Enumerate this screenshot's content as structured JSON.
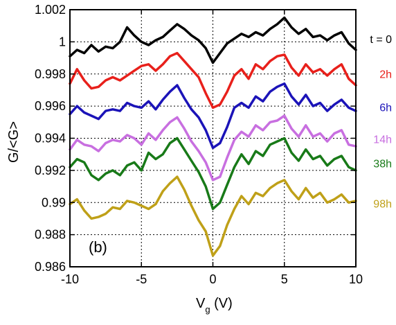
{
  "chart_data": {
    "type": "line",
    "panel_label": "(b)",
    "xlabel": "V",
    "xlabel_sub": "g",
    "xlabel_unit": " (V)",
    "ylabel": "G/<G>",
    "xlim": [
      -10,
      10
    ],
    "ylim": [
      0.986,
      1.002
    ],
    "xticks": [
      -10,
      -5,
      0,
      5,
      10
    ],
    "yticks": [
      0.986,
      0.988,
      0.99,
      0.992,
      0.994,
      0.996,
      0.998,
      1,
      1.002
    ],
    "ytick_labels": [
      "0.986",
      "0.988",
      "0.99",
      "0.992",
      "0.994",
      "0.996",
      "0.998",
      "1",
      "1.002"
    ],
    "grid": "dotted",
    "series": [
      {
        "name": "t = 0",
        "color": "#000000",
        "x": [
          -10,
          -9.5,
          -9,
          -8.5,
          -8,
          -7.5,
          -7,
          -6.5,
          -6,
          -5.5,
          -5,
          -4.5,
          -4,
          -3.5,
          -3,
          -2.5,
          -2,
          -1.5,
          -1,
          -0.5,
          0,
          0.5,
          1,
          1.5,
          2,
          2.5,
          3,
          3.5,
          4,
          4.5,
          5,
          5.5,
          6,
          6.5,
          7,
          7.5,
          8,
          8.5,
          9,
          9.5,
          10
        ],
        "y": [
          0.9991,
          0.9995,
          0.9993,
          0.9998,
          0.9994,
          0.9997,
          0.9996,
          1.0,
          1.0009,
          1.0004,
          1.0,
          0.9998,
          1.0001,
          1.0003,
          1.0007,
          1.0011,
          1.0008,
          1.0004,
          1.0001,
          0.9996,
          0.9987,
          0.9993,
          0.9999,
          1.0002,
          1.0005,
          1.0003,
          1.0006,
          1.0004,
          1.0008,
          1.0011,
          1.0015,
          1.0009,
          1.0005,
          1.0008,
          1.0003,
          1.0004,
          1.0001,
          1.0004,
          1.0006,
          0.9999,
          0.9995
        ]
      },
      {
        "name": "2h",
        "color": "#e8201b",
        "x": [
          -10,
          -9.5,
          -9,
          -8.5,
          -8,
          -7.5,
          -7,
          -6.5,
          -6,
          -5.5,
          -5,
          -4.5,
          -4,
          -3.5,
          -3,
          -2.5,
          -2,
          -1.5,
          -1,
          -0.5,
          0,
          0.5,
          1,
          1.5,
          2,
          2.5,
          3,
          3.5,
          4,
          4.5,
          5,
          5.5,
          6,
          6.5,
          7,
          7.5,
          8,
          8.5,
          9,
          9.5,
          10
        ],
        "y": [
          0.9974,
          0.9983,
          0.9976,
          0.9971,
          0.9972,
          0.9976,
          0.9978,
          0.9976,
          0.9979,
          0.9982,
          0.9985,
          0.9986,
          0.9982,
          0.9986,
          0.9991,
          0.9993,
          0.9988,
          0.9983,
          0.9978,
          0.9968,
          0.9959,
          0.9961,
          0.9969,
          0.9979,
          0.9983,
          0.9977,
          0.9986,
          0.9983,
          0.9988,
          0.9991,
          0.9992,
          0.9984,
          0.9979,
          0.9986,
          0.9981,
          0.9983,
          0.9979,
          0.9983,
          0.9986,
          0.9977,
          0.9973
        ]
      },
      {
        "name": "6h",
        "color": "#1b13b8",
        "x": [
          -10,
          -9.5,
          -9,
          -8.5,
          -8,
          -7.5,
          -7,
          -6.5,
          -6,
          -5.5,
          -5,
          -4.5,
          -4,
          -3.5,
          -3,
          -2.5,
          -2,
          -1.5,
          -1,
          -0.5,
          0,
          0.5,
          1,
          1.5,
          2,
          2.5,
          3,
          3.5,
          4,
          4.5,
          5,
          5.5,
          6,
          6.5,
          7,
          7.5,
          8,
          8.5,
          9,
          9.5,
          10
        ],
        "y": [
          0.9955,
          0.996,
          0.9956,
          0.9954,
          0.9952,
          0.9957,
          0.9958,
          0.9957,
          0.9962,
          0.996,
          0.9959,
          0.9963,
          0.9958,
          0.9964,
          0.9969,
          0.9973,
          0.9965,
          0.9958,
          0.9953,
          0.9945,
          0.9934,
          0.9937,
          0.9947,
          0.9959,
          0.9962,
          0.9959,
          0.9966,
          0.9963,
          0.9969,
          0.9972,
          0.9974,
          0.9966,
          0.9961,
          0.9967,
          0.996,
          0.9962,
          0.9957,
          0.9961,
          0.9964,
          0.9959,
          0.9957
        ]
      },
      {
        "name": "14h",
        "color": "#c86fe0",
        "x": [
          -10,
          -9.5,
          -9,
          -8.5,
          -8,
          -7.5,
          -7,
          -6.5,
          -6,
          -5.5,
          -5,
          -4.5,
          -4,
          -3.5,
          -3,
          -2.5,
          -2,
          -1.5,
          -1,
          -0.5,
          0,
          0.5,
          1,
          1.5,
          2,
          2.5,
          3,
          3.5,
          4,
          4.5,
          5,
          5.5,
          6,
          6.5,
          7,
          7.5,
          8,
          8.5,
          9,
          9.5,
          10
        ],
        "y": [
          0.9933,
          0.9939,
          0.9936,
          0.9935,
          0.9932,
          0.9937,
          0.9939,
          0.9938,
          0.9942,
          0.994,
          0.9936,
          0.9943,
          0.9939,
          0.9945,
          0.995,
          0.9953,
          0.9946,
          0.9938,
          0.9932,
          0.9925,
          0.9914,
          0.9916,
          0.9928,
          0.9939,
          0.9944,
          0.9941,
          0.9948,
          0.9945,
          0.995,
          0.9951,
          0.9954,
          0.9946,
          0.9941,
          0.9948,
          0.9941,
          0.9943,
          0.9938,
          0.9943,
          0.9945,
          0.9936,
          0.9935
        ]
      },
      {
        "name": "38h",
        "color": "#187a18",
        "x": [
          -10,
          -9.5,
          -9,
          -8.5,
          -8,
          -7.5,
          -7,
          -6.5,
          -6,
          -5.5,
          -5,
          -4.5,
          -4,
          -3.5,
          -3,
          -2.5,
          -2,
          -1.5,
          -1,
          -0.5,
          0,
          0.5,
          1,
          1.5,
          2,
          2.5,
          3,
          3.5,
          4,
          4.5,
          5,
          5.5,
          6,
          6.5,
          7,
          7.5,
          8,
          8.5,
          9,
          9.5,
          10
        ],
        "y": [
          0.9922,
          0.9927,
          0.9925,
          0.9917,
          0.9914,
          0.9918,
          0.992,
          0.9917,
          0.9923,
          0.9925,
          0.992,
          0.9931,
          0.9927,
          0.993,
          0.9937,
          0.994,
          0.9933,
          0.9926,
          0.9919,
          0.991,
          0.9896,
          0.99,
          0.9911,
          0.9922,
          0.993,
          0.9924,
          0.9932,
          0.9929,
          0.9936,
          0.9938,
          0.994,
          0.9931,
          0.9926,
          0.9933,
          0.9927,
          0.9929,
          0.9923,
          0.9927,
          0.9929,
          0.9922,
          0.992
        ]
      },
      {
        "name": "98h",
        "color": "#bfa018",
        "x": [
          -10,
          -9.5,
          -9,
          -8.5,
          -8,
          -7.5,
          -7,
          -6.5,
          -6,
          -5.5,
          -5,
          -4.5,
          -4,
          -3.5,
          -3,
          -2.5,
          -2,
          -1.5,
          -1,
          -0.5,
          0,
          0.5,
          1,
          1.5,
          2,
          2.5,
          3,
          3.5,
          4,
          4.5,
          5,
          5.5,
          6,
          6.5,
          7,
          7.5,
          8,
          8.5,
          9,
          9.5,
          10
        ],
        "y": [
          0.9899,
          0.9902,
          0.9895,
          0.989,
          0.9891,
          0.9893,
          0.9897,
          0.9896,
          0.9901,
          0.99,
          0.9898,
          0.9896,
          0.9899,
          0.9907,
          0.9912,
          0.9916,
          0.9908,
          0.9898,
          0.9889,
          0.9882,
          0.9867,
          0.9873,
          0.9886,
          0.9896,
          0.9904,
          0.9899,
          0.9906,
          0.9904,
          0.9909,
          0.9912,
          0.9914,
          0.9907,
          0.9902,
          0.9909,
          0.9903,
          0.9906,
          0.99,
          0.9902,
          0.9905,
          0.99,
          0.9901
        ]
      }
    ]
  }
}
